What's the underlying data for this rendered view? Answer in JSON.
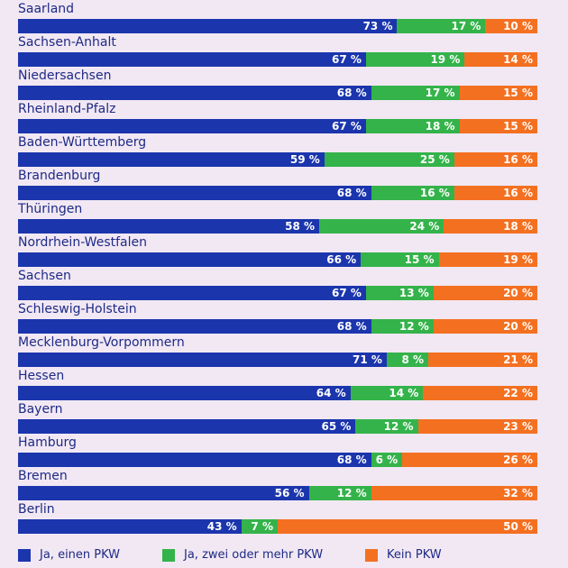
{
  "chart_data": {
    "type": "bar",
    "orientation": "horizontal",
    "stacked": true,
    "percent_suffix": " %",
    "categories": [
      "Saarland",
      "Sachsen-Anhalt",
      "Niedersachsen",
      "Rheinland-Pfalz",
      "Baden-Württemberg",
      "Brandenburg",
      "Thüringen",
      "Nordrhein-Westfalen",
      "Sachsen",
      "Schleswig-Holstein",
      "Mecklenburg-Vorpommern",
      "Hessen",
      "Bayern",
      "Hamburg",
      "Bremen",
      "Berlin"
    ],
    "series": [
      {
        "name": "Ja, einen PKW",
        "color": "#1b35ad",
        "values": [
          73,
          67,
          68,
          67,
          59,
          68,
          58,
          66,
          67,
          68,
          71,
          64,
          65,
          68,
          56,
          43
        ]
      },
      {
        "name": "Ja, zwei oder mehr PKW",
        "color": "#34b34a",
        "values": [
          17,
          19,
          17,
          18,
          25,
          16,
          24,
          15,
          13,
          12,
          8,
          14,
          12,
          6,
          12,
          7
        ]
      },
      {
        "name": "Kein PKW",
        "color": "#f47021",
        "values": [
          10,
          14,
          15,
          15,
          16,
          16,
          18,
          19,
          20,
          20,
          21,
          22,
          23,
          26,
          32,
          50
        ]
      }
    ],
    "xlim": [
      0,
      100
    ],
    "legend": "bottom",
    "grid": false
  }
}
